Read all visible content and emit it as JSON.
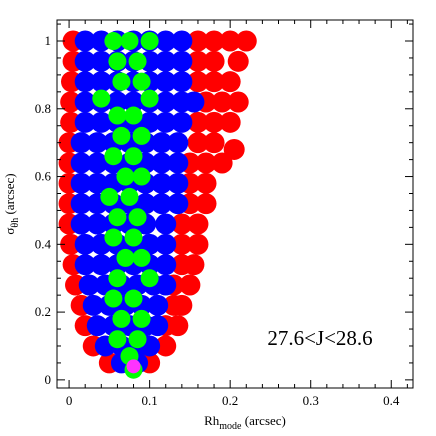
{
  "chart_data": {
    "type": "scatter",
    "x_label": {
      "text": "Rh",
      "sub": "mode",
      "rest": " (arcsec)"
    },
    "y_label": {
      "text": "σ",
      "sub": "θh",
      "rest": " (arcsec)"
    },
    "annotation": "27.6<J<28.6",
    "xlim": [
      -0.015,
      0.427
    ],
    "ylim": [
      -0.024,
      1.062
    ],
    "xticks": [
      0,
      0.1,
      0.2,
      0.3,
      0.4
    ],
    "yticks": [
      0,
      0.2,
      0.4,
      0.6,
      0.8,
      1
    ],
    "x_minor_ticks": [
      0.02,
      0.04,
      0.06,
      0.08,
      0.12,
      0.14,
      0.16,
      0.18,
      0.22,
      0.24,
      0.26,
      0.28,
      0.32,
      0.34,
      0.36,
      0.38,
      0.42
    ],
    "y_minor_ticks": [
      0.05,
      0.1,
      0.15,
      0.25,
      0.3,
      0.35,
      0.45,
      0.5,
      0.55,
      0.65,
      0.7,
      0.75,
      0.85,
      0.9,
      0.95,
      1.05
    ],
    "series": [
      {
        "color": "#ff0000",
        "x": [
          0.005,
          0.16,
          0.18,
          0.2,
          0.22,
          0.005,
          0.16,
          0.18,
          0.21,
          0.003,
          0.16,
          0.18,
          0.2,
          0.002,
          0.17,
          0.19,
          0.21,
          0.002,
          0.16,
          0.18,
          0.2,
          0,
          0.16,
          0.18,
          0,
          0.15,
          0.17,
          0.19,
          0,
          0.15,
          0.17,
          0,
          0.15,
          0.17,
          0,
          0.14,
          0.16,
          0.002,
          0.14,
          0.16,
          0.005,
          0.14,
          0.155,
          0.008,
          0.13,
          0.15,
          0.015,
          0.13,
          0.14,
          0.02,
          0.12,
          0.135,
          0.03,
          0.12,
          0.05,
          0.1,
          0.205
        ],
        "y": [
          1,
          1,
          1,
          1,
          1,
          0.94,
          0.94,
          0.94,
          0.94,
          0.88,
          0.88,
          0.88,
          0.88,
          0.82,
          0.82,
          0.82,
          0.82,
          0.76,
          0.76,
          0.76,
          0.76,
          0.7,
          0.7,
          0.7,
          0.64,
          0.64,
          0.64,
          0.64,
          0.58,
          0.58,
          0.58,
          0.52,
          0.52,
          0.52,
          0.46,
          0.46,
          0.46,
          0.4,
          0.4,
          0.4,
          0.34,
          0.34,
          0.34,
          0.28,
          0.28,
          0.28,
          0.22,
          0.22,
          0.22,
          0.16,
          0.16,
          0.16,
          0.1,
          0.1,
          0.05,
          0.05,
          0.68
        ]
      },
      {
        "color": "#0000ff",
        "x": [
          0.02,
          0.04,
          0.06,
          0.08,
          0.1,
          0.12,
          0.14,
          0.02,
          0.04,
          0.06,
          0.08,
          0.1,
          0.12,
          0.14,
          0.02,
          0.04,
          0.06,
          0.08,
          0.1,
          0.12,
          0.14,
          0.02,
          0.04,
          0.06,
          0.08,
          0.1,
          0.12,
          0.14,
          0.155,
          0.02,
          0.04,
          0.06,
          0.08,
          0.1,
          0.12,
          0.14,
          0.015,
          0.035,
          0.055,
          0.075,
          0.095,
          0.115,
          0.135,
          0.015,
          0.035,
          0.055,
          0.075,
          0.095,
          0.115,
          0.135,
          0.015,
          0.035,
          0.055,
          0.075,
          0.095,
          0.115,
          0.135,
          0.015,
          0.035,
          0.055,
          0.075,
          0.095,
          0.115,
          0.135,
          0.015,
          0.035,
          0.055,
          0.075,
          0.095,
          0.12,
          0.02,
          0.04,
          0.06,
          0.08,
          0.1,
          0.12,
          0.02,
          0.04,
          0.06,
          0.08,
          0.1,
          0.12,
          0.025,
          0.045,
          0.065,
          0.085,
          0.105,
          0.12,
          0.03,
          0.05,
          0.07,
          0.09,
          0.11,
          0.035,
          0.055,
          0.075,
          0.095,
          0.11,
          0.045,
          0.065,
          0.085,
          0.1,
          0.065,
          0.085
        ],
        "y": [
          1,
          1,
          1,
          1,
          1,
          1,
          1,
          0.94,
          0.94,
          0.94,
          0.94,
          0.94,
          0.94,
          0.94,
          0.88,
          0.88,
          0.88,
          0.88,
          0.88,
          0.88,
          0.88,
          0.82,
          0.82,
          0.82,
          0.82,
          0.82,
          0.82,
          0.82,
          0.82,
          0.76,
          0.76,
          0.76,
          0.76,
          0.76,
          0.76,
          0.76,
          0.7,
          0.7,
          0.7,
          0.7,
          0.7,
          0.7,
          0.7,
          0.64,
          0.64,
          0.64,
          0.64,
          0.64,
          0.64,
          0.64,
          0.58,
          0.58,
          0.58,
          0.58,
          0.58,
          0.58,
          0.58,
          0.52,
          0.52,
          0.52,
          0.52,
          0.52,
          0.52,
          0.52,
          0.46,
          0.46,
          0.46,
          0.46,
          0.46,
          0.46,
          0.4,
          0.4,
          0.4,
          0.4,
          0.4,
          0.4,
          0.34,
          0.34,
          0.34,
          0.34,
          0.34,
          0.34,
          0.28,
          0.28,
          0.28,
          0.28,
          0.28,
          0.28,
          0.22,
          0.22,
          0.22,
          0.22,
          0.22,
          0.16,
          0.16,
          0.16,
          0.16,
          0.16,
          0.1,
          0.1,
          0.1,
          0.1,
          0.05,
          0.05
        ]
      },
      {
        "color": "#00ff00",
        "x": [
          0.055,
          0.075,
          0.1,
          0.06,
          0.085,
          0.065,
          0.09,
          0.04,
          0.1,
          0.06,
          0.08,
          0.065,
          0.09,
          0.055,
          0.08,
          0.07,
          0.09,
          0.05,
          0.075,
          0.06,
          0.085,
          0.055,
          0.08,
          0.07,
          0.09,
          0.06,
          0.1,
          0.055,
          0.08,
          0.065,
          0.09,
          0.06,
          0.085,
          0.075,
          0.08
        ],
        "y": [
          1,
          1,
          1,
          0.94,
          0.94,
          0.88,
          0.88,
          0.83,
          0.83,
          0.78,
          0.78,
          0.72,
          0.72,
          0.66,
          0.66,
          0.6,
          0.6,
          0.54,
          0.54,
          0.48,
          0.48,
          0.42,
          0.42,
          0.36,
          0.36,
          0.3,
          0.3,
          0.24,
          0.24,
          0.18,
          0.18,
          0.12,
          0.12,
          0.07,
          0.03
        ]
      },
      {
        "color": "#ff33ff",
        "x": [
          0.08
        ],
        "y": [
          0.04
        ]
      }
    ]
  }
}
